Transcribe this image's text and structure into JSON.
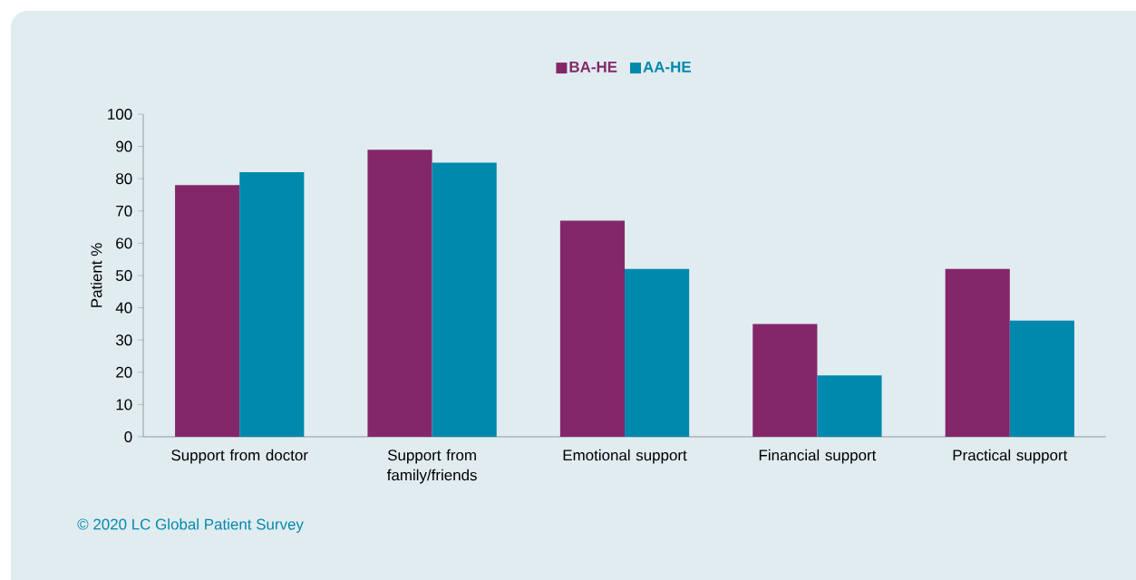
{
  "chart_data": {
    "type": "bar",
    "ylabel": "Patient %",
    "categories": [
      "Support from doctor",
      "Support from family/friends",
      "Emotional support",
      "Financial support",
      "Practical support"
    ],
    "series": [
      {
        "name": "BA-HE",
        "color": "#84276a",
        "values": [
          78,
          89,
          67,
          35,
          52
        ]
      },
      {
        "name": "AA-HE",
        "color": "#0089ad",
        "values": [
          82,
          85,
          52,
          19,
          36
        ]
      }
    ],
    "ylim": [
      0,
      100
    ],
    "yticks": [
      0,
      10,
      20,
      30,
      40,
      50,
      60,
      70,
      80,
      90,
      100
    ],
    "legend": "top",
    "annotations": [
      "© 2020 LC Global Patient Survey"
    ]
  }
}
